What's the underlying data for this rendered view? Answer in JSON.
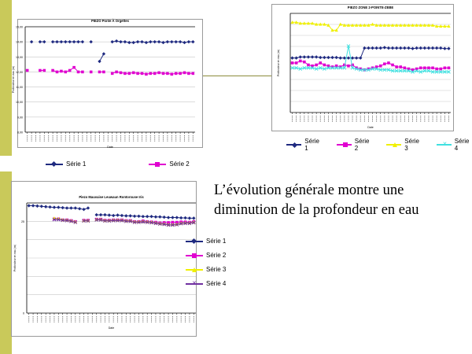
{
  "slide": {
    "statement": "L’évolution générale montre une diminution de la profondeur en eau",
    "band_color": "#c9c95a"
  },
  "chart_data": [
    {
      "type": "line",
      "title": "PIEZO Ponte À Orgettes",
      "xlabel": "Date",
      "ylabel": "Profondeur en eau (m)",
      "yticks": [
        "8,00",
        "9,00",
        "10,00",
        "11,00",
        "12,00",
        "13,00",
        "14,00",
        "15,00"
      ],
      "ylim": [
        8,
        15
      ],
      "grid": true,
      "legend_position": "bottom",
      "n_points": 40,
      "series": [
        {
          "name": "Série 1",
          "color": "#1f2a80",
          "marker": "diamond",
          "values": [
            null,
            14.0,
            null,
            14.0,
            14.0,
            null,
            14.0,
            14.0,
            14.0,
            14.0,
            14.0,
            14.0,
            14.0,
            14.0,
            null,
            14.0,
            null,
            12.7,
            13.2,
            null,
            14.0,
            14.05,
            14.0,
            14.0,
            13.95,
            13.95,
            14.0,
            14.0,
            13.95,
            14.0,
            14.0,
            14.0,
            13.95,
            14.0,
            14.0,
            14.0,
            14.0,
            13.95,
            14.0,
            14.0
          ]
        },
        {
          "name": "Série 2",
          "color": "#e000d0",
          "marker": "square",
          "values": [
            12.1,
            null,
            null,
            12.1,
            12.1,
            null,
            12.1,
            12.0,
            12.05,
            12.0,
            12.1,
            12.3,
            12.0,
            12.0,
            null,
            12.0,
            null,
            12.0,
            12.0,
            null,
            11.9,
            12.0,
            11.95,
            11.9,
            11.9,
            11.95,
            11.9,
            11.9,
            11.85,
            11.9,
            11.9,
            11.95,
            11.9,
            11.9,
            11.85,
            11.9,
            11.9,
            11.95,
            11.9,
            11.9
          ]
        }
      ]
    },
    {
      "type": "line",
      "title": "PIEZO ZONE 2-POINTE-ZEBE",
      "xlabel": "Date",
      "ylabel": "Profondeur en eau (m)",
      "yticks": [
        "",
        "",
        "",
        "",
        "",
        "",
        "",
        "",
        "",
        ""
      ],
      "ylim": [
        0,
        10
      ],
      "grid": true,
      "legend_position": "bottom",
      "n_points": 40,
      "series": [
        {
          "name": "Série 1",
          "color": "#1f2a80",
          "marker": "diamond",
          "values": [
            5.5,
            5.5,
            5.6,
            5.6,
            5.6,
            5.6,
            5.6,
            5.55,
            5.55,
            5.55,
            5.55,
            5.55,
            5.5,
            5.5,
            5.5,
            5.5,
            5.5,
            5.5,
            6.5,
            6.5,
            6.5,
            6.5,
            6.5,
            6.55,
            6.5,
            6.5,
            6.5,
            6.5,
            6.5,
            6.5,
            6.45,
            6.5,
            6.5,
            6.5,
            6.5,
            6.5,
            6.5,
            6.5,
            6.45,
            6.45
          ]
        },
        {
          "name": "Série 2",
          "color": "#e000d0",
          "marker": "square",
          "values": [
            5.0,
            5.0,
            5.2,
            5.1,
            4.8,
            4.7,
            4.8,
            5.0,
            4.8,
            4.7,
            4.6,
            4.7,
            4.6,
            4.8,
            4.7,
            4.8,
            4.5,
            4.4,
            4.3,
            4.4,
            4.5,
            4.6,
            4.7,
            4.9,
            5.0,
            4.8,
            4.6,
            4.6,
            4.5,
            4.4,
            4.3,
            4.4,
            4.5,
            4.5,
            4.5,
            4.5,
            4.4,
            4.4,
            4.5,
            4.5
          ]
        },
        {
          "name": "Série 3",
          "color": "#f0f000",
          "marker": "triangle",
          "values": [
            9.1,
            9.1,
            9.0,
            9.0,
            9.0,
            9.0,
            8.9,
            8.9,
            8.9,
            8.8,
            8.3,
            8.3,
            8.9,
            8.8,
            8.8,
            8.8,
            8.8,
            8.8,
            8.8,
            8.8,
            8.9,
            8.8,
            8.8,
            8.8,
            8.8,
            8.8,
            8.8,
            8.8,
            8.8,
            8.8,
            8.8,
            8.8,
            8.8,
            8.8,
            8.8,
            8.8,
            8.7,
            8.7,
            8.7,
            8.7
          ]
        },
        {
          "name": "Série 4",
          "color": "#40e0e0",
          "marker": "cross",
          "values": [
            4.5,
            4.5,
            4.4,
            4.5,
            4.5,
            4.5,
            4.4,
            4.5,
            4.4,
            4.5,
            4.5,
            4.5,
            4.5,
            4.5,
            6.7,
            4.5,
            4.4,
            4.3,
            4.3,
            4.3,
            4.4,
            4.4,
            4.3,
            4.3,
            4.3,
            4.2,
            4.2,
            4.2,
            4.2,
            4.2,
            4.1,
            4.2,
            4.1,
            4.2,
            4.2,
            4.1,
            4.1,
            4.1,
            4.1,
            4.1
          ]
        }
      ]
    },
    {
      "type": "line",
      "title": "Piezo Mauvaise Leuwaun Rontorouse Iris",
      "xlabel": "Date",
      "ylabel": "Profondeur en eau (m)",
      "yticks": [
        "0",
        "",
        "",
        "",
        "",
        "25",
        ""
      ],
      "ylim": [
        0,
        32.5
      ],
      "grid": true,
      "legend_position": "right",
      "n_points": 40,
      "series": [
        {
          "name": "Série 1",
          "color": "#1f2a80",
          "marker": "diamond",
          "values": [
            31.7,
            31.7,
            31.6,
            31.5,
            31.4,
            31.3,
            31.2,
            31.2,
            31.1,
            31.0,
            31.0,
            31.0,
            30.8,
            30.6,
            31.0,
            null,
            29.0,
            29.0,
            29.0,
            28.9,
            28.8,
            28.9,
            28.8,
            28.7,
            28.7,
            28.6,
            28.6,
            28.5,
            28.5,
            28.5,
            28.4,
            28.4,
            28.3,
            28.2,
            28.2,
            28.2,
            28.1,
            28.1,
            28.0,
            28.0
          ]
        },
        {
          "name": "Série 2",
          "color": "#e000d0",
          "marker": "square",
          "values": [
            null,
            null,
            null,
            null,
            null,
            null,
            27.8,
            27.8,
            27.5,
            27.5,
            27.3,
            27.0,
            null,
            27.4,
            27.4,
            null,
            27.7,
            27.7,
            27.4,
            27.4,
            27.5,
            27.5,
            27.5,
            27.3,
            27.3,
            27.0,
            27.0,
            27.2,
            27.0,
            26.9,
            26.8,
            26.6,
            26.7,
            26.7,
            26.8,
            26.8,
            26.9,
            26.9,
            26.8,
            27.0
          ]
        },
        {
          "name": "Série 3",
          "color": "#f0f000",
          "marker": "triangle",
          "values": [
            null,
            null,
            null,
            null,
            null,
            null,
            28.0,
            27.8,
            27.5,
            27.4,
            27.2,
            26.9,
            null,
            27.3,
            27.3,
            null,
            27.6,
            27.6,
            27.3,
            27.3,
            27.4,
            27.4,
            27.4,
            27.2,
            27.2,
            26.9,
            26.9,
            27.0,
            26.9,
            26.8,
            26.6,
            26.4,
            26.3,
            26.1,
            26.1,
            26.2,
            26.5,
            26.6,
            26.6,
            26.8
          ]
        },
        {
          "name": "Série 4",
          "color": "#7030a0",
          "marker": "cross",
          "values": [
            null,
            null,
            null,
            null,
            null,
            null,
            27.6,
            27.6,
            27.4,
            27.3,
            27.1,
            26.8,
            null,
            27.2,
            27.2,
            null,
            27.5,
            27.5,
            27.2,
            27.2,
            27.3,
            27.3,
            27.3,
            27.1,
            27.1,
            26.8,
            26.8,
            26.9,
            26.8,
            26.7,
            26.5,
            26.3,
            26.2,
            26.0,
            26.0,
            26.1,
            26.4,
            26.5,
            26.5,
            26.7
          ]
        }
      ]
    }
  ]
}
